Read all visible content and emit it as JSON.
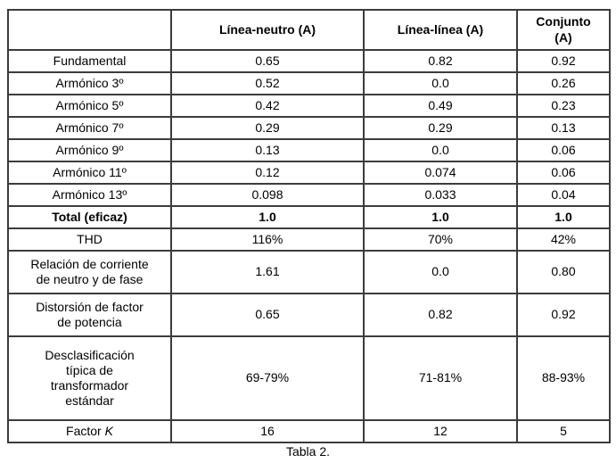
{
  "table": {
    "columns": [
      "",
      "Línea-neutro (A)",
      "Línea-línea (A)",
      "Conjunto\n(A)"
    ],
    "rows": [
      {
        "label": "Fundamental",
        "values": [
          "0.65",
          "0.82",
          "0.92"
        ]
      },
      {
        "label": "Armónico 3º",
        "values": [
          "0.52",
          "0.0",
          "0.26"
        ]
      },
      {
        "label": "Armónico 5º",
        "values": [
          "0.42",
          "0.49",
          "0.23"
        ]
      },
      {
        "label": "Armónico 7º",
        "values": [
          "0.29",
          "0.29",
          "0.13"
        ]
      },
      {
        "label": "Armónico 9º",
        "values": [
          "0.13",
          "0.0",
          "0.06"
        ]
      },
      {
        "label": "Armónico 11º",
        "values": [
          "0.12",
          "0.074",
          "0.06"
        ]
      },
      {
        "label": "Armónico 13º",
        "values": [
          "0.098",
          "0.033",
          "0.04"
        ]
      },
      {
        "label": "Total (eficaz)",
        "values": [
          "1.0",
          "1.0",
          "1.0"
        ],
        "bold": true
      },
      {
        "label": "THD",
        "values": [
          "116%",
          "70%",
          "42%"
        ]
      },
      {
        "label": "Relación de corriente\nde neutro y de fase",
        "values": [
          "1.61",
          "0.0",
          "0.80"
        ]
      },
      {
        "label": "Distorsión de factor\nde potencia",
        "values": [
          "0.65",
          "0.82",
          "0.92"
        ]
      },
      {
        "label": "Desclasificación\ntípica de\ntransformador\nestándar",
        "values": [
          "69-79%",
          "71-81%",
          "88-93%"
        ]
      },
      {
        "label": "Factor ",
        "label_italic": "K",
        "values": [
          "16",
          "12",
          "5"
        ]
      }
    ],
    "caption": "Tabla 2.",
    "border_color": "#3c3c3c",
    "text_color": "#000000"
  }
}
